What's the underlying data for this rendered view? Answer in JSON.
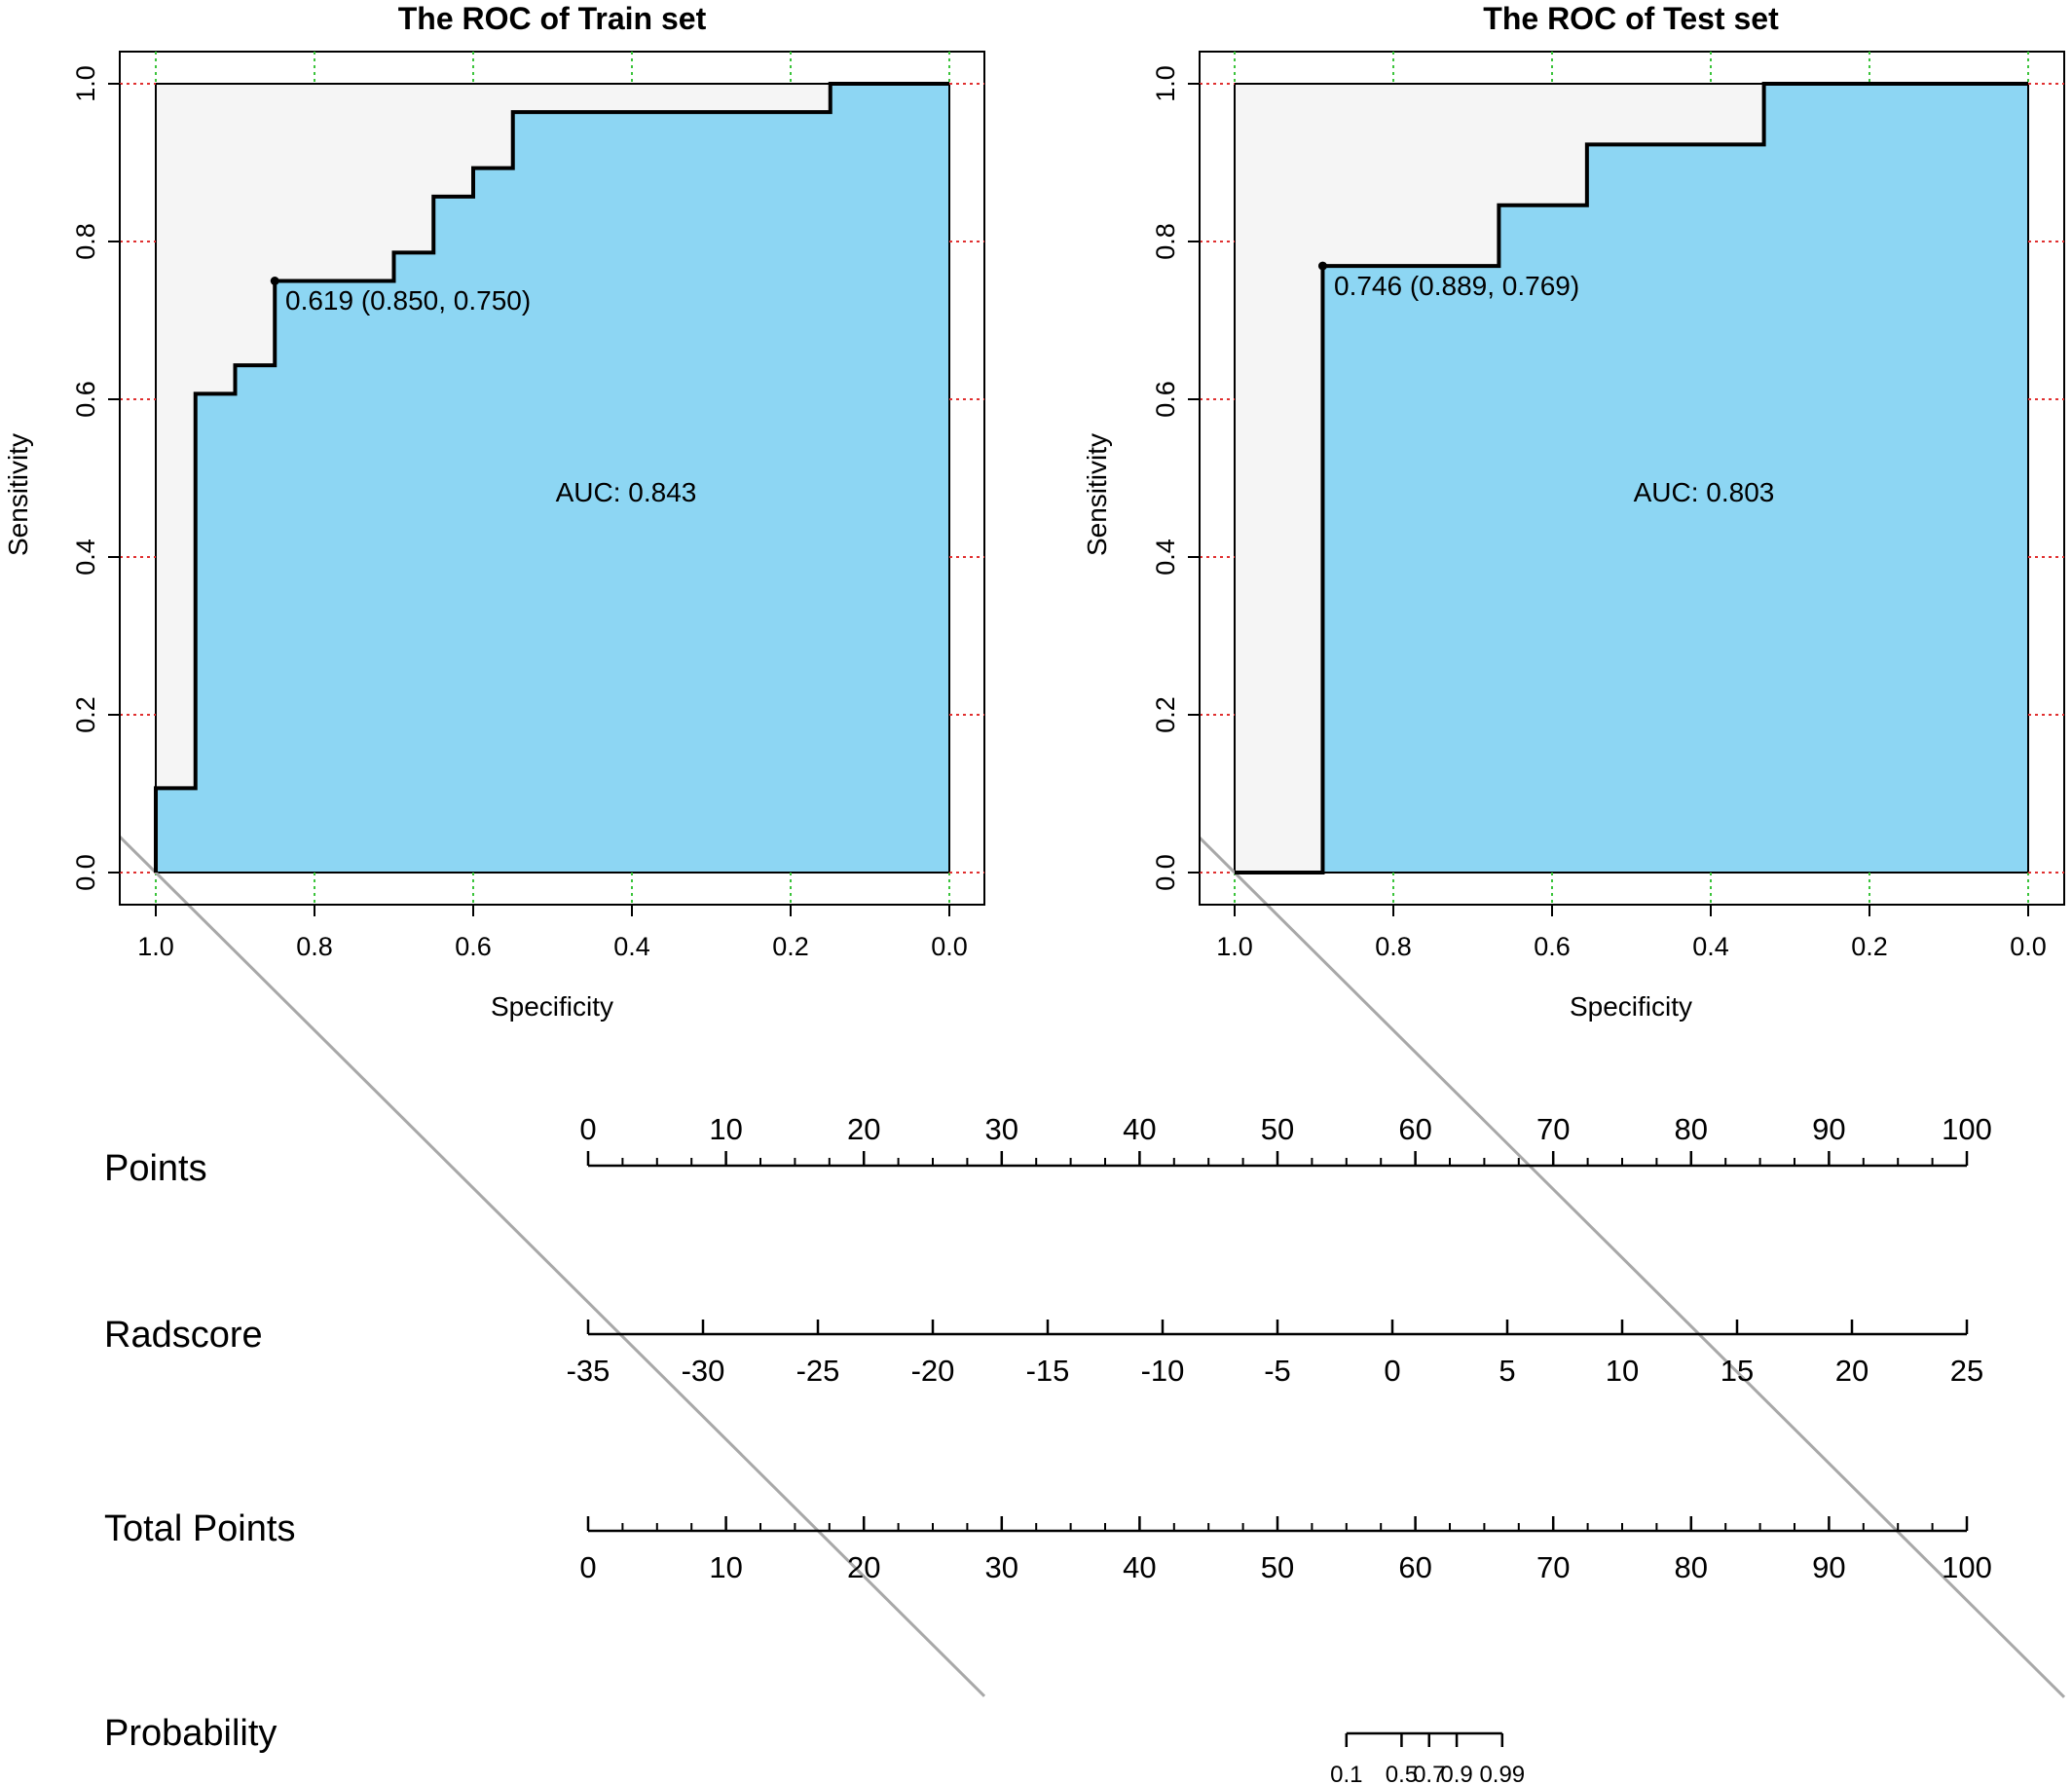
{
  "chart_data": [
    {
      "type": "line",
      "title": "The ROC of Train set",
      "xlabel": "Specificity",
      "ylabel": "Sensitivity",
      "xlim": [
        1.0,
        0.0
      ],
      "ylim": [
        0.0,
        1.0
      ],
      "x_ticks": [
        "1.0",
        "0.8",
        "0.6",
        "0.4",
        "0.2",
        "0.0"
      ],
      "y_ticks": [
        "0.0",
        "0.2",
        "0.4",
        "0.6",
        "0.8",
        "1.0"
      ],
      "grid": true,
      "auc_text": "AUC: 0.843",
      "threshold_text": "0.619 (0.850, 0.750)",
      "threshold_point": {
        "specificity": 0.85,
        "sensitivity": 0.75
      },
      "curve": {
        "specificity": [
          1.0,
          1.0,
          0.95,
          0.95,
          0.9,
          0.9,
          0.85,
          0.85,
          0.7,
          0.7,
          0.65,
          0.65,
          0.6,
          0.6,
          0.55,
          0.55,
          0.15,
          0.15,
          0.0
        ],
        "sensitivity": [
          0.0,
          0.107,
          0.107,
          0.607,
          0.607,
          0.643,
          0.643,
          0.75,
          0.75,
          0.786,
          0.786,
          0.857,
          0.857,
          0.893,
          0.893,
          0.964,
          0.964,
          1.0,
          1.0
        ]
      },
      "colors": {
        "fill": "#8dd6f3",
        "bg": "#f5f5f5",
        "grid_x": "#3cc43c",
        "grid_y": "#e03030",
        "diagonal": "#a8a8a8"
      }
    },
    {
      "type": "line",
      "title": "The ROC of Test set",
      "xlabel": "Specificity",
      "ylabel": "Sensitivity",
      "xlim": [
        1.0,
        0.0
      ],
      "ylim": [
        0.0,
        1.0
      ],
      "x_ticks": [
        "1.0",
        "0.8",
        "0.6",
        "0.4",
        "0.2",
        "0.0"
      ],
      "y_ticks": [
        "0.0",
        "0.2",
        "0.4",
        "0.6",
        "0.8",
        "1.0"
      ],
      "grid": true,
      "auc_text": "AUC: 0.803",
      "threshold_text": "0.746 (0.889, 0.769)",
      "threshold_point": {
        "specificity": 0.889,
        "sensitivity": 0.769
      },
      "curve": {
        "specificity": [
          1.0,
          0.889,
          0.889,
          0.667,
          0.667,
          0.556,
          0.556,
          0.333,
          0.333,
          0.0
        ],
        "sensitivity": [
          0.0,
          0.0,
          0.769,
          0.769,
          0.846,
          0.846,
          0.923,
          0.923,
          1.0,
          1.0
        ]
      },
      "colors": {
        "fill": "#8dd6f3",
        "bg": "#f5f5f5",
        "grid_x": "#3cc43c",
        "grid_y": "#e03030",
        "diagonal": "#a8a8a8"
      }
    },
    {
      "type": "nomogram",
      "scales": [
        {
          "label": "Points",
          "ticks": [
            "0",
            "10",
            "20",
            "30",
            "40",
            "50",
            "60",
            "70",
            "80",
            "90",
            "100"
          ],
          "min": 0,
          "max": 100,
          "minor_step": 2.5,
          "labels_above": true
        },
        {
          "label": "Radscore",
          "ticks": [
            "-35",
            "-30",
            "-25",
            "-20",
            "-15",
            "-10",
            "-5",
            "0",
            "5",
            "10",
            "15",
            "20",
            "25"
          ],
          "min": -35,
          "max": 25,
          "minor_step": 0,
          "labels_above": false
        },
        {
          "label": "Total Points",
          "ticks": [
            "0",
            "10",
            "20",
            "30",
            "40",
            "50",
            "60",
            "70",
            "80",
            "90",
            "100"
          ],
          "min": 0,
          "max": 100,
          "minor_step": 2.5,
          "labels_above": false
        },
        {
          "label": "Probability",
          "ticks": [
            "0.1",
            "0.5",
            "0.7",
            "0.9",
            "0.99"
          ],
          "points_at": [
            55.0,
            59.0,
            61.0,
            63.0,
            66.3
          ],
          "labels_above": false
        }
      ]
    }
  ]
}
